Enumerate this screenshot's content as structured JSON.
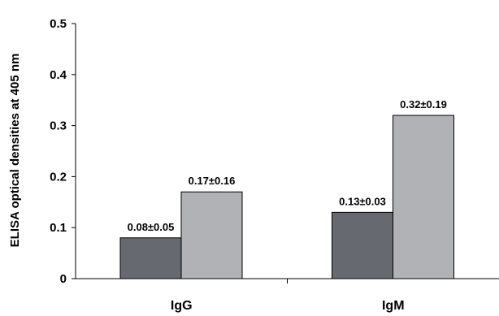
{
  "chart_data": {
    "type": "bar",
    "title": "",
    "xlabel": "",
    "ylabel": "ELISA optical densities at 405 nm",
    "ylim": [
      0,
      0.5
    ],
    "yticks": [
      "0",
      "0.1",
      "0.2",
      "0.3",
      "0.4",
      "0.5"
    ],
    "categories": [
      "IgG",
      "IgM"
    ],
    "series": [
      {
        "values": [
          0.08,
          0.13
        ],
        "labels": [
          "0.08±0.05",
          "0.13±0.03"
        ],
        "color": "#666a70"
      },
      {
        "values": [
          0.17,
          0.32
        ],
        "labels": [
          "0.17±0.16",
          "0.32±0.19"
        ],
        "color": "#b1b2b6"
      }
    ],
    "grid": false,
    "legend": "none"
  }
}
